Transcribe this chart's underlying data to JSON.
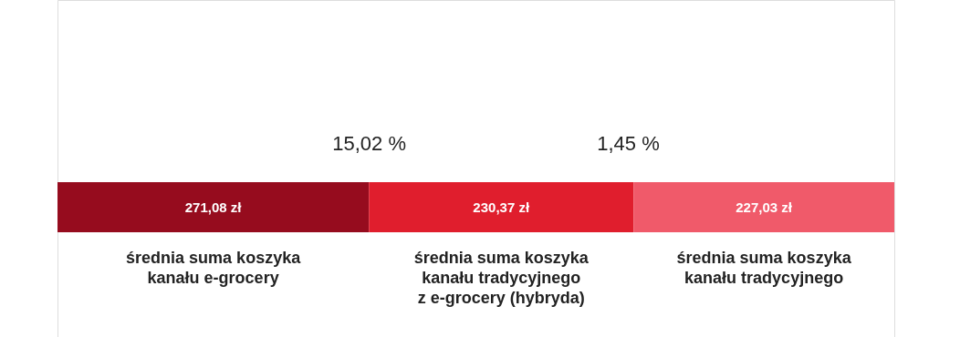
{
  "chart_data": {
    "type": "bar",
    "orientation": "horizontal",
    "stacked": true,
    "categories": [
      null
    ],
    "series": [
      {
        "name": "średnia suma koszyka\nkanału e-grocery",
        "color": "#960c1e",
        "values": [
          271.08
        ],
        "value_labels": [
          "271,08 zł"
        ]
      },
      {
        "name": "średnia suma koszyka\nkanału tradycyjnego\nz e-grocery (hybryda)",
        "color": "#e01e2d",
        "values": [
          230.37
        ],
        "value_labels": [
          "230,37 zł"
        ]
      },
      {
        "name": "średnia suma koszyka\nkanału tradycyjnego",
        "color": "#f05a6a",
        "values": [
          227.03
        ],
        "value_labels": [
          "227,03 zł"
        ]
      }
    ],
    "annotations": [
      "15,02 %",
      "1,45 %"
    ]
  }
}
